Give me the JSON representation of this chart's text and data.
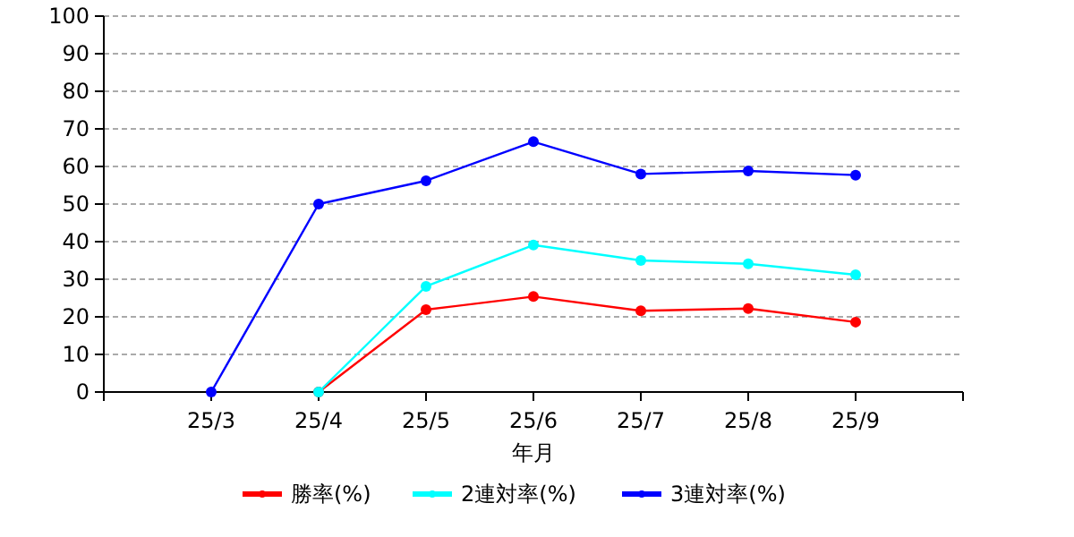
{
  "chart_data": {
    "type": "line",
    "xlabel": "年月",
    "categories": [
      "25/3",
      "25/4",
      "25/5",
      "25/6",
      "25/7",
      "25/8",
      "25/9"
    ],
    "series": [
      {
        "name": "勝率(%)",
        "color": "#ff0000",
        "values": [
          null,
          0,
          21.9,
          25.4,
          21.6,
          22.2,
          18.6
        ]
      },
      {
        "name": "2連対率(%)",
        "color": "#00ffff",
        "values": [
          null,
          0,
          28.1,
          39.1,
          35.0,
          34.1,
          31.2
        ]
      },
      {
        "name": "3連対率(%)",
        "color": "#0000ff",
        "values": [
          0,
          50.0,
          56.2,
          66.6,
          58.0,
          58.8,
          57.7
        ]
      }
    ],
    "ylim": [
      0,
      100
    ],
    "yticks": [
      0,
      10,
      20,
      30,
      40,
      50,
      60,
      70,
      80,
      90,
      100
    ],
    "grid": "y",
    "legend": "bottom",
    "marker": "circle"
  }
}
